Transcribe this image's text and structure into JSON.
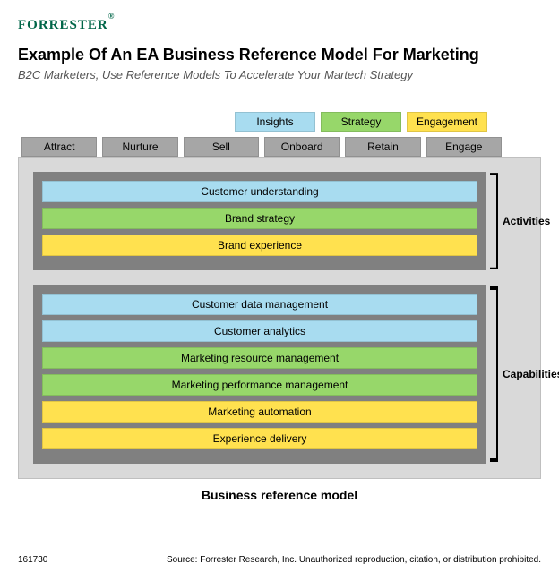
{
  "brand": {
    "logo_text": "FORRESTER",
    "logo_color": "#006648"
  },
  "header": {
    "title": "Example Of An EA Business Reference Model For Marketing",
    "subtitle": "B2C Marketers, Use Reference Models To Accelerate Your Martech Strategy",
    "title_fontsize": 18,
    "subtitle_fontsize": 13
  },
  "colors": {
    "insights": "#a8dcf0",
    "strategy": "#97d76a",
    "engagement": "#ffe14f",
    "tab": "#a6a6a6",
    "outer_bg": "#d9d9d9",
    "section_bg": "#808080",
    "page_bg": "#ffffff"
  },
  "legend": [
    {
      "label": "Insights",
      "color_key": "insights"
    },
    {
      "label": "Strategy",
      "color_key": "strategy"
    },
    {
      "label": "Engagement",
      "color_key": "engagement"
    }
  ],
  "tabs": [
    {
      "label": "Attract"
    },
    {
      "label": "Nurture"
    },
    {
      "label": "Sell"
    },
    {
      "label": "Onboard"
    },
    {
      "label": "Retain"
    },
    {
      "label": "Engage"
    }
  ],
  "sections": [
    {
      "bracket_label": "Activities",
      "bars": [
        {
          "label": "Customer understanding",
          "color_key": "insights"
        },
        {
          "label": "Brand strategy",
          "color_key": "strategy"
        },
        {
          "label": "Brand experience",
          "color_key": "engagement"
        }
      ]
    },
    {
      "bracket_label": "Capabilities",
      "bars": [
        {
          "label": "Customer data management",
          "color_key": "insights"
        },
        {
          "label": "Customer analytics",
          "color_key": "insights"
        },
        {
          "label": "Marketing resource management",
          "color_key": "strategy"
        },
        {
          "label": "Marketing performance management",
          "color_key": "strategy"
        },
        {
          "label": "Marketing automation",
          "color_key": "engagement"
        },
        {
          "label": "Experience delivery",
          "color_key": "engagement"
        }
      ]
    }
  ],
  "caption": "Business reference model",
  "footer": {
    "id": "161730",
    "source": "Source: Forrester Research, Inc. Unauthorized reproduction, citation, or distribution prohibited."
  }
}
